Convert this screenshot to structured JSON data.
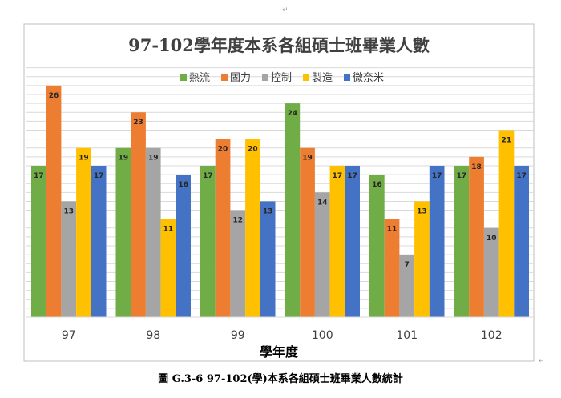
{
  "caption": "圖 G.3-6  97-102(學)本系各組碩士班畢業人數統計",
  "para_mark": "↵",
  "chart_data": {
    "type": "bar",
    "title": "97-102學年度本系各組碩士班畢業人數",
    "xlabel": "學年度",
    "ylabel": "",
    "categories": [
      "97",
      "98",
      "99",
      "100",
      "101",
      "102"
    ],
    "ylim": [
      0,
      28
    ],
    "grid": true,
    "legend_position": "top",
    "series": [
      {
        "name": "熱流",
        "color": "#70AD47",
        "values": [
          17,
          19,
          17,
          24,
          16,
          17
        ]
      },
      {
        "name": "固力",
        "color": "#ED7D31",
        "values": [
          26,
          23,
          20,
          19,
          11,
          18
        ]
      },
      {
        "name": "控制",
        "color": "#A5A5A5",
        "values": [
          13,
          19,
          12,
          14,
          7,
          10
        ]
      },
      {
        "name": "製造",
        "color": "#FFC000",
        "values": [
          19,
          11,
          20,
          17,
          13,
          21
        ]
      },
      {
        "name": "微奈米",
        "color": "#4472C4",
        "values": [
          17,
          16,
          13,
          17,
          17,
          17
        ]
      }
    ]
  }
}
